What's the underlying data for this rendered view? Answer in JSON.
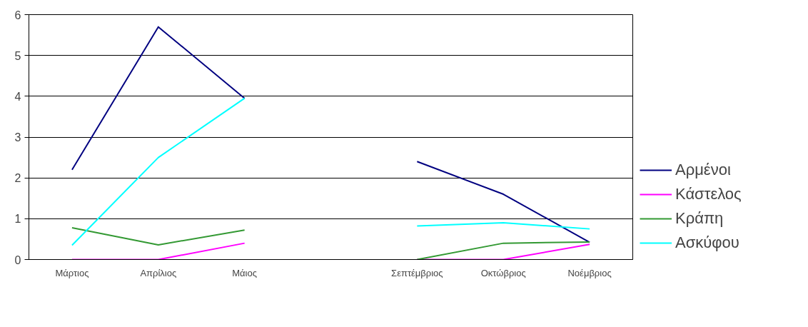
{
  "chart_data": {
    "type": "line",
    "categories": [
      "Μάρτιος",
      "Απρίλιος",
      "Μάιος",
      null,
      "Σεπτέμβριος",
      "Οκτώβριος",
      "Νοέμβριος"
    ],
    "series": [
      {
        "name": "Αρμένοι",
        "color": "#000080",
        "values": [
          2.2,
          5.7,
          3.95,
          null,
          2.4,
          1.6,
          0.42
        ]
      },
      {
        "name": "Κάστελος",
        "color": "#ff00ff",
        "values": [
          0,
          0,
          0.4,
          null,
          0,
          0,
          0.37
        ]
      },
      {
        "name": "Κράπη",
        "color": "#339933",
        "values": [
          0.78,
          0.36,
          0.72,
          null,
          0,
          0.4,
          0.43
        ]
      },
      {
        "name": "Ασκύφου",
        "color": "#00ffff",
        "values": [
          0.35,
          2.5,
          3.95,
          null,
          0.82,
          0.9,
          0.75
        ]
      }
    ],
    "ylim": [
      0,
      6
    ],
    "yticks": [
      0,
      1,
      2,
      3,
      4,
      5,
      6
    ],
    "grid": "y",
    "legend": "right",
    "marker": "none",
    "line_style": "solid"
  }
}
